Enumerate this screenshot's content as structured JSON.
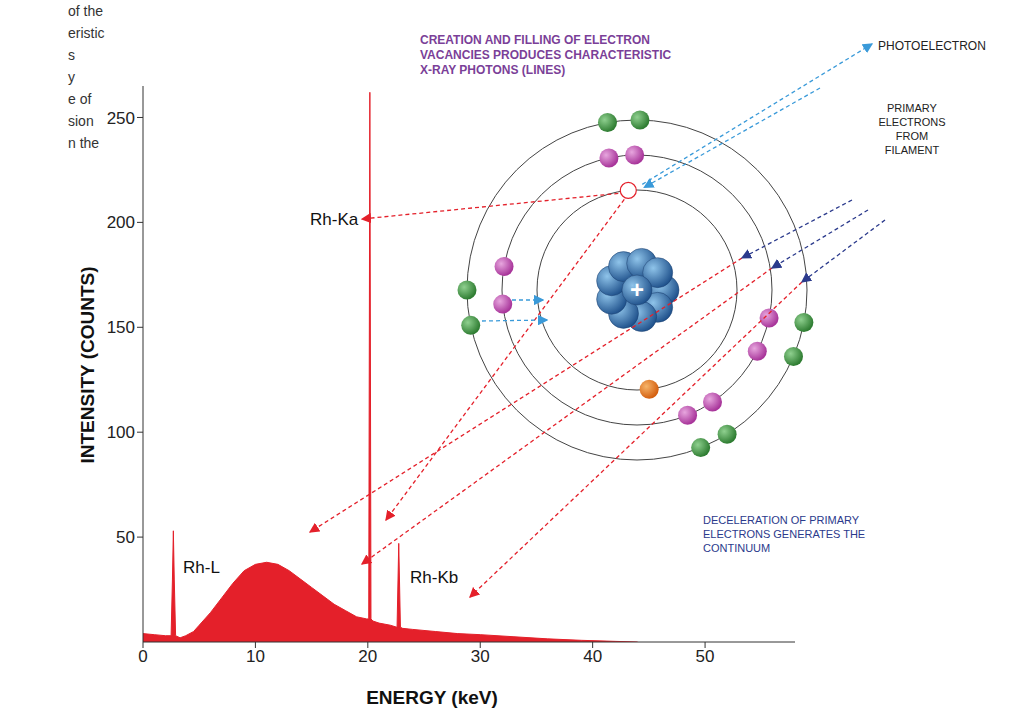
{
  "chart_data": {
    "type": "area",
    "x_label": "ENERGY (keV)",
    "y_label": "INTENSITY (COUNTS)",
    "x": [
      0,
      1,
      2,
      2.5,
      2.62,
      2.7,
      2.78,
      2.9,
      3.3,
      3.8,
      4.5,
      5,
      6,
      7,
      8,
      9,
      10,
      11,
      12,
      13,
      14,
      15,
      16,
      17,
      18,
      19,
      19.9,
      20.08,
      20.18,
      20.28,
      20.45,
      21,
      22,
      22.6,
      22.75,
      22.9,
      23.1,
      24,
      26,
      28,
      30,
      33,
      36,
      39,
      42,
      44
    ],
    "values": [
      4,
      3.5,
      3,
      3,
      30,
      53,
      30,
      3,
      2,
      3,
      5,
      8,
      14,
      21,
      28,
      34,
      37,
      38,
      37,
      34,
      30,
      26,
      22,
      18,
      15,
      12,
      11,
      11,
      262,
      11,
      10,
      9,
      8,
      7,
      47,
      7,
      6.5,
      6,
      5,
      4,
      3.5,
      2.5,
      1.5,
      0.8,
      0.3,
      0
    ],
    "color": "#e4202a",
    "xlim": [
      0,
      58
    ],
    "ylim": [
      0,
      265
    ],
    "xticks": [
      0,
      10,
      20,
      30,
      40,
      50
    ],
    "yticks": [
      50,
      100,
      150,
      200,
      250
    ],
    "grid": false,
    "annotations": [
      "Rh-L",
      "Rh-Ka",
      "Rh-Kb"
    ]
  },
  "diagram": {
    "caption": [
      "CREATION AND FILLING OF ELECTRON",
      "VACANCIES PRODUCES CHARACTERISTIC",
      "X-RAY PHOTONS (LINES)"
    ],
    "photoelectron": "PHOTOELECTRON",
    "primary": [
      "PRIMARY",
      "ELECTRONS",
      "FROM",
      "FILAMENT"
    ],
    "continuum": [
      "DECELERATION OF PRIMARY",
      "ELECTRONS GENERATES THE",
      "CONTINUUM"
    ],
    "nucleus": "+"
  },
  "side_text": [
    "of the",
    "eristic",
    "s",
    "y",
    "e of",
    "sion",
    "n the"
  ]
}
